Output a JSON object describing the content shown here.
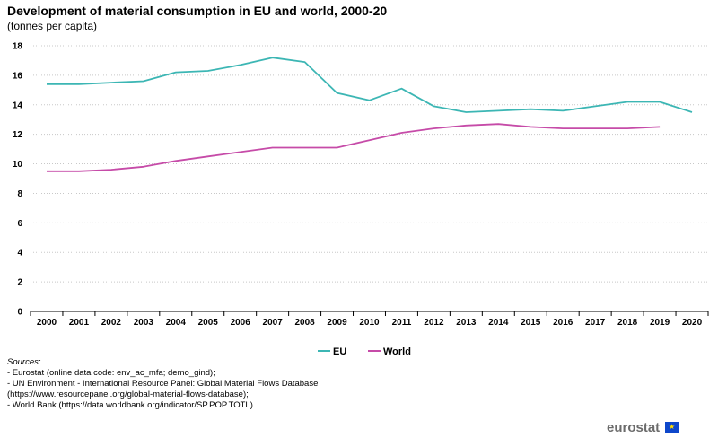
{
  "header": {
    "title": "Development of material consumption in EU and world, 2000-20",
    "subtitle": "(tonnes per capita)"
  },
  "chart_data": {
    "type": "line",
    "title": "Development of material consumption in EU and world, 2000-20",
    "subtitle": "(tonnes per capita)",
    "xlabel": "",
    "ylabel": "tonnes per capita",
    "categories": [
      "2000",
      "2001",
      "2002",
      "2003",
      "2004",
      "2005",
      "2006",
      "2007",
      "2008",
      "2009",
      "2010",
      "2011",
      "2012",
      "2013",
      "2014",
      "2015",
      "2016",
      "2017",
      "2018",
      "2019",
      "2020"
    ],
    "y_ticks": [
      "0",
      "2",
      "4",
      "6",
      "8",
      "10",
      "12",
      "14",
      "16",
      "18"
    ],
    "ylim": [
      0,
      18
    ],
    "grid": true,
    "legend_position": "bottom-center",
    "series": [
      {
        "name": "EU",
        "color": "#3cb6b4",
        "values": [
          15.4,
          15.4,
          15.5,
          15.6,
          16.2,
          16.3,
          16.7,
          17.2,
          16.9,
          14.8,
          14.3,
          15.1,
          13.9,
          13.5,
          13.6,
          13.7,
          13.6,
          13.9,
          14.2,
          14.2,
          13.5
        ]
      },
      {
        "name": "World",
        "color": "#c64ba8",
        "values": [
          9.5,
          9.5,
          9.6,
          9.8,
          10.2,
          10.5,
          10.8,
          11.1,
          11.1,
          11.1,
          11.6,
          12.1,
          12.4,
          12.6,
          12.7,
          12.5,
          12.4,
          12.4,
          12.4,
          12.5,
          null
        ]
      }
    ]
  },
  "sources": {
    "heading": "Sources:",
    "lines": [
      "- Eurostat (online data code: env_ac_mfa;  demo_gind);",
      "- UN Environment  - International  Resource Panel:  Global Material Flows Database (https://www.resourcepanel.org/global-material-flows-database);",
      "- World Bank (https://data.worldbank.org/indicator/SP.POP.TOTL)."
    ]
  },
  "logo": {
    "text": "eurostat",
    "flag_color": "#0e47cb"
  }
}
